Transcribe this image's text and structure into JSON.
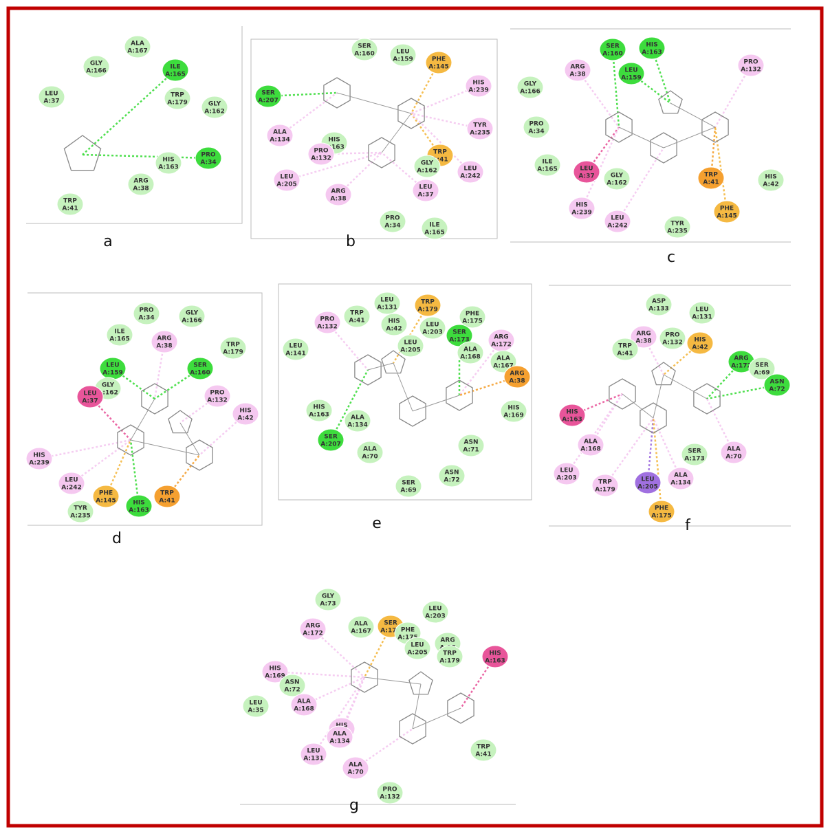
{
  "panels": [
    {
      "label": "a",
      "residues": [
        {
          "name": "ALA",
          "id": "A:167",
          "color": "#c6f2be"
        },
        {
          "name": "GLY",
          "id": "A:166",
          "color": "#c6f2be"
        },
        {
          "name": "ILE",
          "id": "A:165",
          "color": "#3ddc3d"
        },
        {
          "name": "LEU",
          "id": "A:37",
          "color": "#c6f2be"
        },
        {
          "name": "TRP",
          "id": "A:179",
          "color": "#c6f2be"
        },
        {
          "name": "GLY",
          "id": "A:162",
          "color": "#c6f2be"
        },
        {
          "name": "PRO",
          "id": "A:34",
          "color": "#3ddc3d"
        },
        {
          "name": "HIS",
          "id": "A:163",
          "color": "#c6f2be"
        },
        {
          "name": "ARG",
          "id": "A:38",
          "color": "#c6f2be"
        },
        {
          "name": "TRP",
          "id": "A:41",
          "color": "#c6f2be"
        }
      ]
    },
    {
      "label": "b",
      "residues": [
        {
          "name": "SER",
          "id": "A:160",
          "color": "#c6f2be"
        },
        {
          "name": "LEU",
          "id": "A:159",
          "color": "#c6f2be"
        },
        {
          "name": "PHE",
          "id": "A:145",
          "color": "#f5b942"
        },
        {
          "name": "SER",
          "id": "A:207",
          "color": "#3ddc3d"
        },
        {
          "name": "HIS",
          "id": "A:239",
          "color": "#f5c8f0"
        },
        {
          "name": "TYR",
          "id": "A:235",
          "color": "#f5c8f0"
        },
        {
          "name": "ALA",
          "id": "A:134",
          "color": "#f5c8f0"
        },
        {
          "name": "HIS",
          "id": "A:163",
          "color": "#c6f2be"
        },
        {
          "name": "PRO",
          "id": "A:132",
          "color": "#f5c8f0"
        },
        {
          "name": "TRP",
          "id": "A:41",
          "color": "#f5b942"
        },
        {
          "name": "GLY",
          "id": "A:162",
          "color": "#c6f2be"
        },
        {
          "name": "LEU",
          "id": "A:242",
          "color": "#f5c8f0"
        },
        {
          "name": "LEU",
          "id": "A:205",
          "color": "#f5c8f0"
        },
        {
          "name": "ARG",
          "id": "A:38",
          "color": "#f5c8f0"
        },
        {
          "name": "LEU",
          "id": "A:37",
          "color": "#f5c8f0"
        },
        {
          "name": "PRO",
          "id": "A:34",
          "color": "#c6f2be"
        },
        {
          "name": "ILE",
          "id": "A:165",
          "color": "#c6f2be"
        }
      ]
    },
    {
      "label": "c",
      "residues": [
        {
          "name": "SER",
          "id": "A:160",
          "color": "#3ddc3d"
        },
        {
          "name": "HIS",
          "id": "A:163",
          "color": "#3ddc3d"
        },
        {
          "name": "ARG",
          "id": "A:38",
          "color": "#f5c8f0"
        },
        {
          "name": "LEU",
          "id": "A:159",
          "color": "#3ddc3d"
        },
        {
          "name": "PRO",
          "id": "A:132",
          "color": "#f5c8f0"
        },
        {
          "name": "GLY",
          "id": "A:166",
          "color": "#c6f2be"
        },
        {
          "name": "PRO",
          "id": "A:34",
          "color": "#c6f2be"
        },
        {
          "name": "ILE",
          "id": "A:165",
          "color": "#c6f2be"
        },
        {
          "name": "LEU",
          "id": "A:37",
          "color": "#e8559a"
        },
        {
          "name": "GLY",
          "id": "A:162",
          "color": "#c6f2be"
        },
        {
          "name": "TRP",
          "id": "A:41",
          "color": "#f5a030"
        },
        {
          "name": "HIS",
          "id": "A:42",
          "color": "#c6f2be"
        },
        {
          "name": "HIS",
          "id": "A:239",
          "color": "#f5c8f0"
        },
        {
          "name": "LEU",
          "id": "A:242",
          "color": "#f5c8f0"
        },
        {
          "name": "TYR",
          "id": "A:235",
          "color": "#c6f2be"
        },
        {
          "name": "PHE",
          "id": "A:145",
          "color": "#f5b942"
        }
      ]
    },
    {
      "label": "d",
      "residues": [
        {
          "name": "PRO",
          "id": "A:34",
          "color": "#c6f2be"
        },
        {
          "name": "GLY",
          "id": "A:166",
          "color": "#c6f2be"
        },
        {
          "name": "ILE",
          "id": "A:165",
          "color": "#c6f2be"
        },
        {
          "name": "ARG",
          "id": "A:38",
          "color": "#f5c8f0"
        },
        {
          "name": "TRP",
          "id": "A:179",
          "color": "#c6f2be"
        },
        {
          "name": "LEU",
          "id": "A:159",
          "color": "#3ddc3d"
        },
        {
          "name": "SER",
          "id": "A:160",
          "color": "#3ddc3d"
        },
        {
          "name": "GLY",
          "id": "A:162",
          "color": "#c6f2be"
        },
        {
          "name": "LEU",
          "id": "A:37",
          "color": "#e8559a"
        },
        {
          "name": "PRO",
          "id": "A:132",
          "color": "#f5c8f0"
        },
        {
          "name": "HIS",
          "id": "A:42",
          "color": "#f5c8f0"
        },
        {
          "name": "HIS",
          "id": "A:239",
          "color": "#f5c8f0"
        },
        {
          "name": "LEU",
          "id": "A:242",
          "color": "#f5c8f0"
        },
        {
          "name": "PHE",
          "id": "A:145",
          "color": "#f5b942"
        },
        {
          "name": "TRP",
          "id": "A:41",
          "color": "#f5a030"
        },
        {
          "name": "HIS",
          "id": "A:163",
          "color": "#3ddc3d"
        },
        {
          "name": "TYR",
          "id": "A:235",
          "color": "#c6f2be"
        }
      ]
    },
    {
      "label": "e",
      "residues": [
        {
          "name": "LEU",
          "id": "A:131",
          "color": "#c6f2be"
        },
        {
          "name": "TRP",
          "id": "A:179",
          "color": "#f5b942"
        },
        {
          "name": "PRO",
          "id": "A:132",
          "color": "#f5c8f0"
        },
        {
          "name": "TRP",
          "id": "A:41",
          "color": "#c6f2be"
        },
        {
          "name": "HIS",
          "id": "A:42",
          "color": "#c6f2be"
        },
        {
          "name": "LEU",
          "id": "A:203",
          "color": "#c6f2be"
        },
        {
          "name": "PHE",
          "id": "A:175",
          "color": "#c6f2be"
        },
        {
          "name": "SER",
          "id": "A:173",
          "color": "#3ddc3d"
        },
        {
          "name": "ARG",
          "id": "A:172",
          "color": "#f5c8f0"
        },
        {
          "name": "LEU",
          "id": "A:141",
          "color": "#c6f2be"
        },
        {
          "name": "LEU",
          "id": "A:205",
          "color": "#c6f2be"
        },
        {
          "name": "ALA",
          "id": "A:168",
          "color": "#c6f2be"
        },
        {
          "name": "ALA",
          "id": "A:167",
          "color": "#c6f2be"
        },
        {
          "name": "ARG",
          "id": "A:38",
          "color": "#f5a030"
        },
        {
          "name": "HIS",
          "id": "A:163",
          "color": "#c6f2be"
        },
        {
          "name": "HIS",
          "id": "A:169",
          "color": "#c6f2be"
        },
        {
          "name": "ALA",
          "id": "A:134",
          "color": "#c6f2be"
        },
        {
          "name": "SER",
          "id": "A:207",
          "color": "#3ddc3d"
        },
        {
          "name": "ALA",
          "id": "A:70",
          "color": "#c6f2be"
        },
        {
          "name": "ASN",
          "id": "A:71",
          "color": "#c6f2be"
        },
        {
          "name": "ASN",
          "id": "A:72",
          "color": "#c6f2be"
        },
        {
          "name": "SER",
          "id": "A:69",
          "color": "#c6f2be"
        }
      ]
    },
    {
      "label": "f",
      "residues": [
        {
          "name": "ASP",
          "id": "A:133",
          "color": "#c6f2be"
        },
        {
          "name": "LEU",
          "id": "A:131",
          "color": "#c6f2be"
        },
        {
          "name": "ARG",
          "id": "A:38",
          "color": "#f5c8f0"
        },
        {
          "name": "PRO",
          "id": "A:132",
          "color": "#c6f2be"
        },
        {
          "name": "HIS",
          "id": "A:42",
          "color": "#f5b942"
        },
        {
          "name": "TRP",
          "id": "A:41",
          "color": "#c6f2be"
        },
        {
          "name": "ARG",
          "id": "A:172",
          "color": "#3ddc3d"
        },
        {
          "name": "SER",
          "id": "A:69",
          "color": "#c6f2be"
        },
        {
          "name": "ASN",
          "id": "A:72",
          "color": "#3ddc3d"
        },
        {
          "name": "HIS",
          "id": "A:163",
          "color": "#e8559a"
        },
        {
          "name": "ALA",
          "id": "A:168",
          "color": "#f5c8f0"
        },
        {
          "name": "SER",
          "id": "A:173",
          "color": "#c6f2be"
        },
        {
          "name": "ALA",
          "id": "A:70",
          "color": "#f5c8f0"
        },
        {
          "name": "LEU",
          "id": "A:203",
          "color": "#f5c8f0"
        },
        {
          "name": "TRP",
          "id": "A:179",
          "color": "#f5c8f0"
        },
        {
          "name": "LEU",
          "id": "A:205",
          "color": "#a070e0"
        },
        {
          "name": "ALA",
          "id": "A:134",
          "color": "#f5c8f0"
        },
        {
          "name": "PHE",
          "id": "A:175",
          "color": "#f5b942"
        }
      ]
    },
    {
      "label": "g",
      "residues": [
        {
          "name": "GLY",
          "id": "A:73",
          "color": "#c6f2be"
        },
        {
          "name": "LEU",
          "id": "A:203",
          "color": "#c6f2be"
        },
        {
          "name": "ARG",
          "id": "A:172",
          "color": "#f5c8f0"
        },
        {
          "name": "ALA",
          "id": "A:167",
          "color": "#c6f2be"
        },
        {
          "name": "SER",
          "id": "A:173",
          "color": "#f5b942"
        },
        {
          "name": "PHE",
          "id": "A:175",
          "color": "#c6f2be"
        },
        {
          "name": "ARG",
          "id": "A:38",
          "color": "#c6f2be"
        },
        {
          "name": "LEU",
          "id": "A:205",
          "color": "#c6f2be"
        },
        {
          "name": "TRP",
          "id": "A:179",
          "color": "#c6f2be"
        },
        {
          "name": "HIS",
          "id": "A:163",
          "color": "#e8559a"
        },
        {
          "name": "HIS",
          "id": "A:169",
          "color": "#f5c8f0"
        },
        {
          "name": "ASN",
          "id": "A:72",
          "color": "#c6f2be"
        },
        {
          "name": "LEU",
          "id": "A:35",
          "color": "#c6f2be"
        },
        {
          "name": "ALA",
          "id": "A:168",
          "color": "#f5c8f0"
        },
        {
          "name": "HIS",
          "id": "A:42",
          "color": "#f5c8f0"
        },
        {
          "name": "ALA",
          "id": "A:134",
          "color": "#f5c8f0"
        },
        {
          "name": "LEU",
          "id": "A:131",
          "color": "#f5c8f0"
        },
        {
          "name": "TRP",
          "id": "A:41",
          "color": "#c6f2be"
        },
        {
          "name": "ALA",
          "id": "A:70",
          "color": "#f5c8f0"
        },
        {
          "name": "PRO",
          "id": "A:132",
          "color": "#c6f2be"
        }
      ]
    }
  ]
}
